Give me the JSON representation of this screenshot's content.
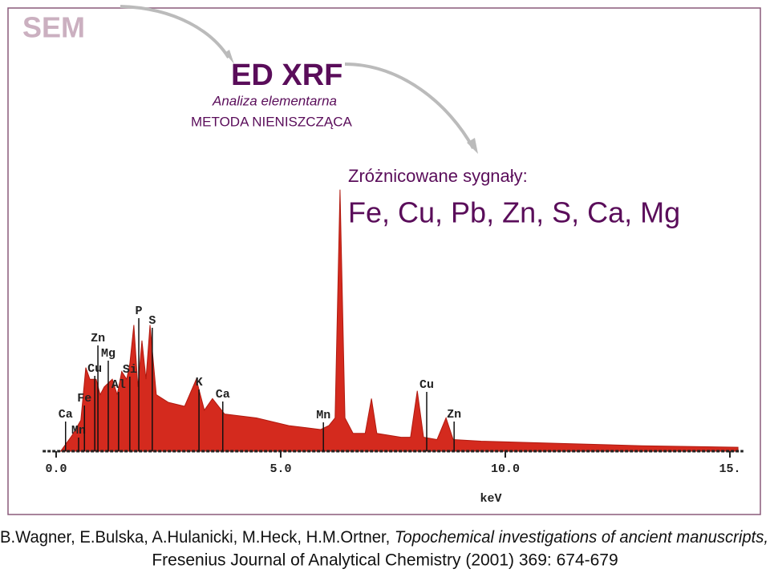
{
  "slide": {
    "corner": "SEM",
    "title": "ED XRF",
    "subtitle": "Analiza elementarna",
    "method": "METODA NIENISZCZĄCA",
    "signals_label": "Zróżnicowane sygnały:",
    "signals": "Fe, Cu, Pb, Zn, S, Ca, Mg",
    "citation_authors": "B.Wagner, E.Bulska, A.Hulanicki, M.Heck, H.M.Ortner, ",
    "citation_title": "Topochemical investigations of ancient manuscripts,",
    "citation_source": "Fresenius Journal of Analytical Chemistry (2001) 369: 674-679"
  },
  "chart_data": {
    "type": "area",
    "color": "#d42a1e",
    "x_label": "keV",
    "x": [
      0.1,
      0.35,
      0.55,
      0.66,
      0.75,
      0.89,
      0.98,
      1.07,
      1.25,
      1.36,
      1.46,
      1.57,
      1.64,
      1.73,
      1.82,
      1.91,
      2.0,
      2.09,
      2.23,
      2.5,
      2.86,
      3.12,
      3.3,
      3.48,
      3.75,
      4.46,
      5.18,
      5.89,
      6.07,
      6.21,
      6.32,
      6.43,
      6.61,
      6.88,
      7.02,
      7.14,
      7.68,
      7.89,
      8.04,
      8.18,
      8.48,
      8.68,
      8.84,
      9.46,
      11.25,
      13.04,
      15.18
    ],
    "values": [
      0,
      20,
      40,
      108,
      93,
      93,
      73,
      83,
      93,
      73,
      103,
      93,
      113,
      163,
      83,
      143,
      93,
      163,
      73,
      63,
      58,
      93,
      53,
      68,
      48,
      43,
      33,
      28,
      33,
      43,
      338,
      43,
      23,
      23,
      68,
      23,
      18,
      18,
      78,
      18,
      15,
      43,
      15,
      13,
      10,
      7,
      5
    ],
    "xlim": [
      -0.3,
      15.3
    ],
    "ylim": [
      0,
      350
    ],
    "xticks": [
      {
        "value": 0,
        "label": "0.0"
      },
      {
        "value": 5,
        "label": "5.0"
      },
      {
        "value": 10,
        "label": "10.0"
      },
      {
        "value": 15,
        "label": "15."
      }
    ],
    "peaks": [
      {
        "label": "Ca",
        "x": 0.21
      },
      {
        "label": "Mn",
        "x": 0.5
      },
      {
        "label": "Fe",
        "x": 0.63
      },
      {
        "label": "Cu",
        "x": 0.86
      },
      {
        "label": "Zn",
        "x": 0.93
      },
      {
        "label": "Mg",
        "x": 1.16
      },
      {
        "label": "Al",
        "x": 1.39
      },
      {
        "label": "Si",
        "x": 1.64
      },
      {
        "label": "P",
        "x": 1.84
      },
      {
        "label": "S",
        "x": 2.14
      },
      {
        "label": "K",
        "x": 3.18
      },
      {
        "label": "Ca",
        "x": 3.71
      },
      {
        "label": "Mn",
        "x": 5.95
      },
      {
        "label": "Cu",
        "x": 8.25
      },
      {
        "label": "Zn",
        "x": 8.86
      }
    ]
  }
}
